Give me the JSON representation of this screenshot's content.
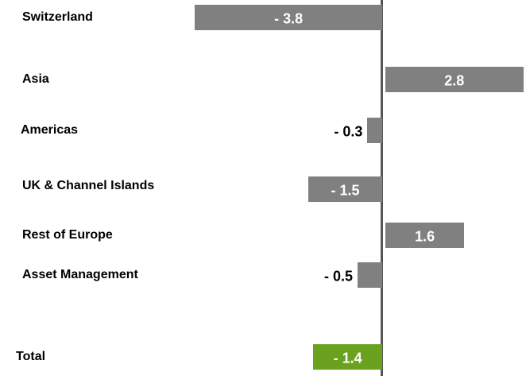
{
  "chart_data": {
    "type": "hbar",
    "categories": [
      "Switzerland",
      "Asia",
      "Americas",
      "UK & Channel Islands",
      "Rest of Europe",
      "Asset Management",
      "Total"
    ],
    "values": [
      -3.8,
      2.8,
      -0.3,
      -1.5,
      1.6,
      -0.5,
      -1.4
    ],
    "value_labels": [
      "- 3.8",
      "2.8",
      "- 0.3",
      "- 1.5",
      "1.6",
      "- 0.5",
      "- 1.4"
    ],
    "colors": [
      "#808080",
      "#808080",
      "#808080",
      "#808080",
      "#808080",
      "#808080",
      "#6aa11e"
    ]
  }
}
